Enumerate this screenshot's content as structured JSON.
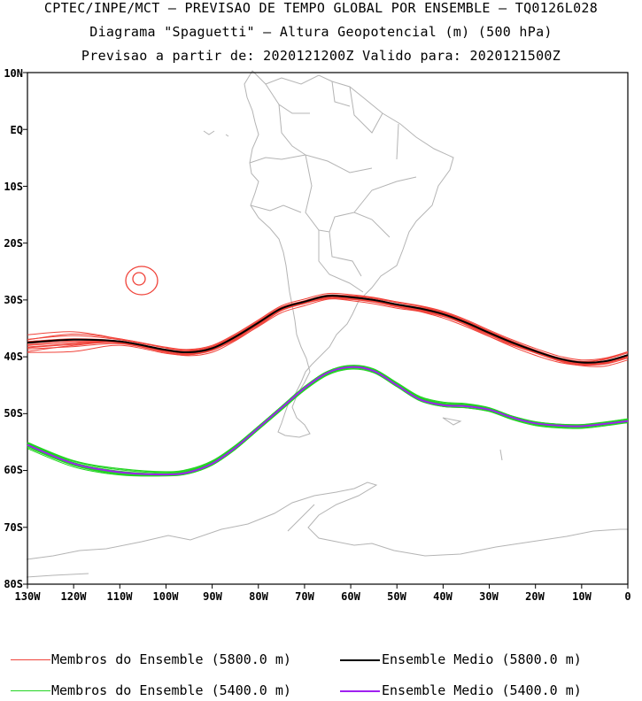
{
  "header": {
    "line1": "CPTEC/INPE/MCT – PREVISAO DE TEMPO GLOBAL POR ENSEMBLE – TQ0126L028",
    "line2": "Diagrama \"Spaguetti\" – Altura Geopotencial (m) (500 hPa)",
    "line3": "Previsao a partir de: 2020121200Z  Valido para: 2020121500Z"
  },
  "axes": {
    "lat_labels": [
      "10N",
      "EQ",
      "10S",
      "20S",
      "30S",
      "40S",
      "50S",
      "60S",
      "70S",
      "80S"
    ],
    "lon_labels": [
      "130W",
      "120W",
      "110W",
      "100W",
      "90W",
      "80W",
      "70W",
      "60W",
      "50W",
      "40W",
      "30W",
      "20W",
      "10W",
      "0"
    ]
  },
  "legend": {
    "members_5800": "Membros do Ensemble (5800.0 m)",
    "mean_5800": "Ensemble Medio (5800.0 m)",
    "members_5400": "Membros do Ensemble (5400.0 m)",
    "mean_5400": "Ensemble Medio (5400.0 m)"
  },
  "colors": {
    "members_5800": "#f0433a",
    "mean_5800": "#000000",
    "members_5400": "#22d422",
    "mean_5400": "#a020f0",
    "coastline": "#b4b4b4"
  },
  "map_extent": {
    "lon": [
      -130,
      0
    ],
    "lat": [
      -80,
      10
    ]
  },
  "chart_data": {
    "type": "line",
    "x": [
      -130,
      -120,
      -110,
      -100,
      -95,
      -90,
      -85,
      -80,
      -75,
      -70,
      -65,
      -60,
      -55,
      -50,
      -45,
      -40,
      -35,
      -30,
      -25,
      -20,
      -15,
      -10,
      -5,
      0
    ],
    "series": [
      {
        "name": "Ensemble Medio (5800.0 m)",
        "values": [
          -37.5,
          -37.0,
          -37.3,
          -38.8,
          -39.2,
          -38.5,
          -36.5,
          -34.0,
          -31.5,
          -30.3,
          -29.3,
          -29.5,
          -30.0,
          -30.8,
          -31.5,
          -32.5,
          -34.0,
          -35.8,
          -37.5,
          -39.0,
          -40.3,
          -41.0,
          -40.8,
          -39.7
        ]
      },
      {
        "name": "Ensemble Medio (5400.0 m)",
        "values": [
          -55.5,
          -58.8,
          -60.3,
          -60.7,
          -60.3,
          -58.8,
          -56.0,
          -52.5,
          -49.0,
          -45.5,
          -42.8,
          -41.8,
          -42.5,
          -45.0,
          -47.5,
          -48.5,
          -48.7,
          -49.3,
          -50.7,
          -51.7,
          -52.1,
          -52.2,
          -51.8,
          -51.3
        ]
      }
    ],
    "member_count": 15
  }
}
